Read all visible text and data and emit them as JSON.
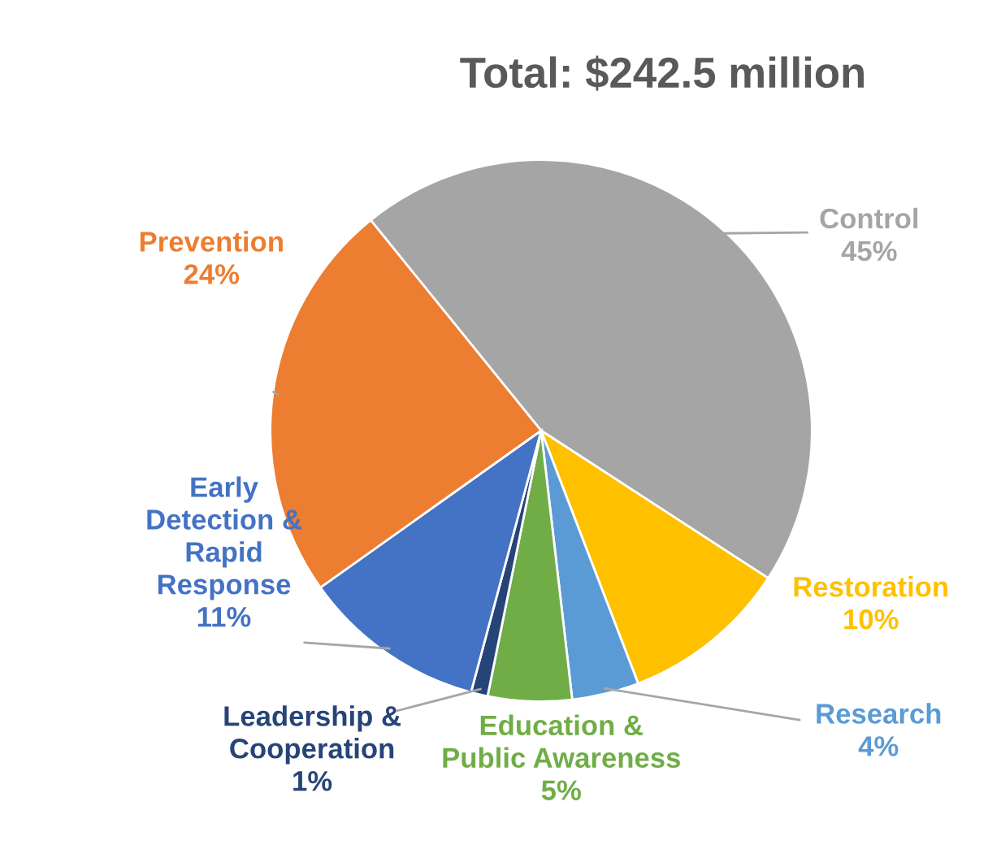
{
  "chart_data": {
    "type": "pie",
    "title": "Total: $242.5 million",
    "categories": [
      "Control",
      "Restoration",
      "Research",
      "Education & Public Awareness",
      "Leadership & Cooperation",
      "Early Detection & Rapid Response",
      "Prevention"
    ],
    "values": [
      45,
      10,
      4,
      5,
      1,
      11,
      24
    ],
    "colors": [
      "#a5a5a5",
      "#ffc000",
      "#5b9bd5",
      "#70ad47",
      "#264478",
      "#4472c4",
      "#ed7d31"
    ],
    "value_labels": [
      "45%",
      "10%",
      "4%",
      "5%",
      "1%",
      "11%",
      "24%"
    ],
    "legend": false
  }
}
